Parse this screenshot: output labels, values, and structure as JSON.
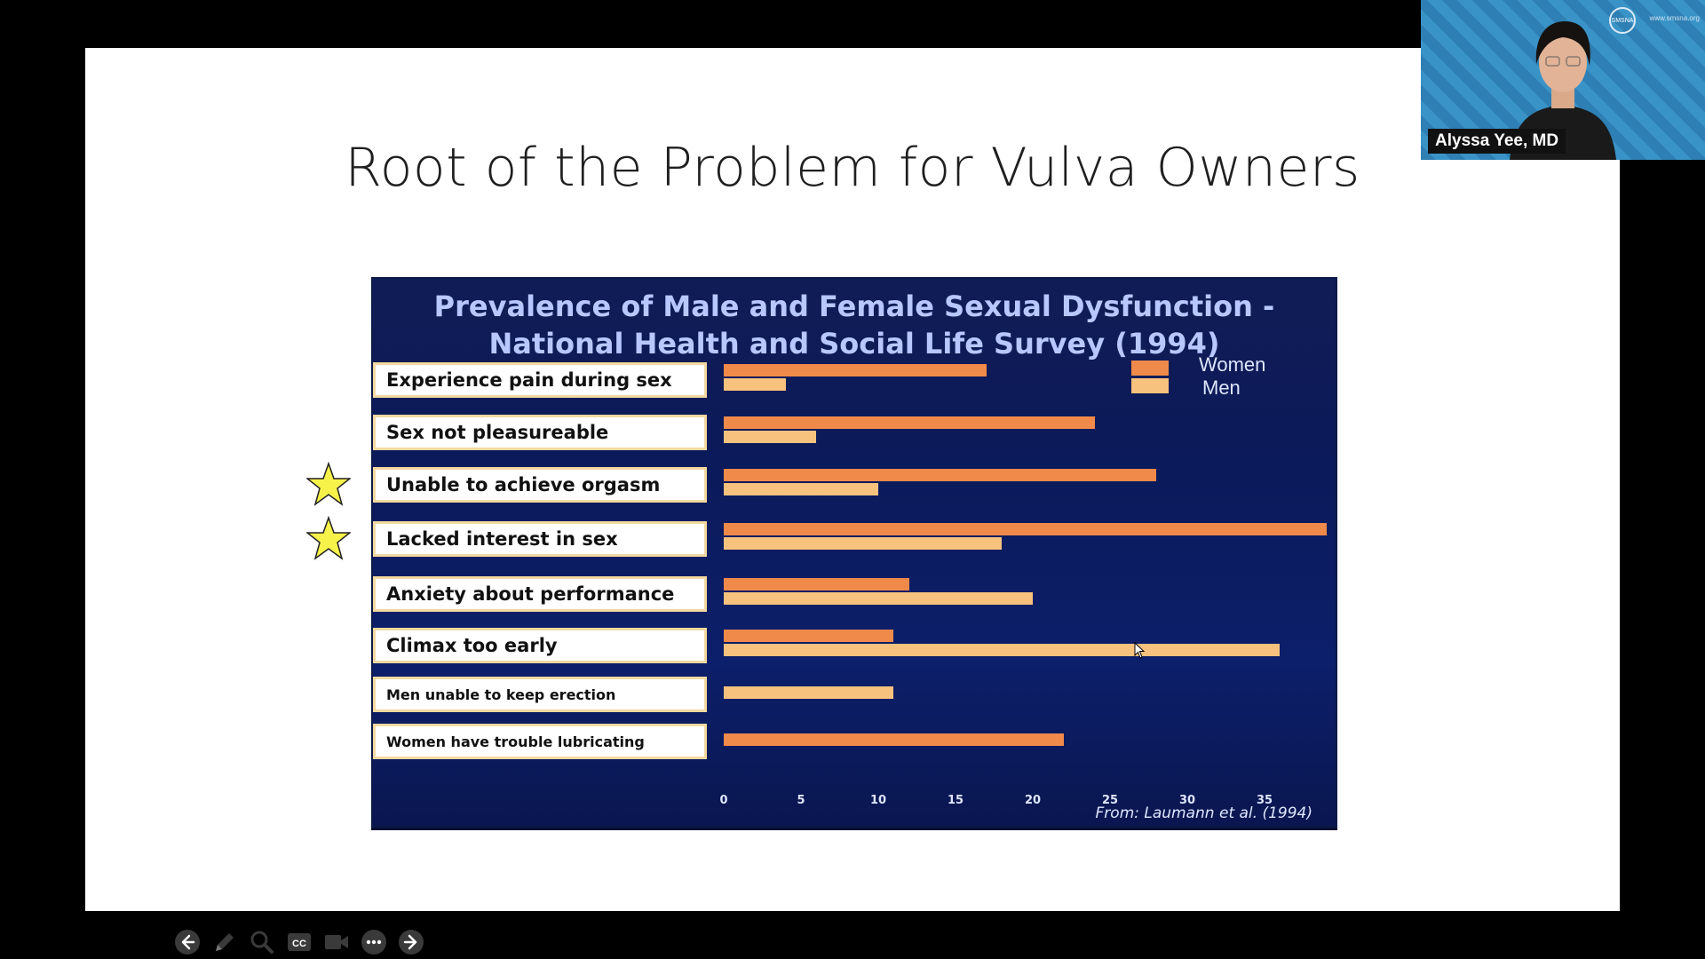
{
  "slide": {
    "title": "Root of the Problem for Vulva Owners"
  },
  "chart_data": {
    "type": "bar",
    "orientation": "horizontal",
    "title": "Prevalence of Male and Female Sexual Dysfunction - National Health and Social Life Survey (1994)",
    "title_line1": "Prevalence of Male and Female Sexual Dysfunction -",
    "title_line2": "National Health and Social Life Survey (1994)",
    "categories": [
      "Experience pain during sex",
      "Sex not pleasureable",
      "Unable to achieve orgasm",
      "Lacked interest in sex",
      "Anxiety about performance",
      "Climax too early",
      "Men unable to keep erection",
      "Women have trouble lubricating"
    ],
    "starred": [
      false,
      false,
      true,
      true,
      false,
      false,
      false,
      false
    ],
    "series": [
      {
        "name": "Women",
        "color": "#f08a4b",
        "values": [
          17,
          24,
          28,
          39,
          12,
          11,
          null,
          22
        ]
      },
      {
        "name": "Men",
        "color": "#f7c27e",
        "values": [
          4,
          6,
          10,
          18,
          20,
          36,
          11,
          null
        ]
      }
    ],
    "xlim": [
      0,
      39
    ],
    "xticks": [
      "0",
      "5",
      "10",
      "15",
      "20",
      "25",
      "30",
      "35"
    ],
    "legend_position": "top-right",
    "source": "From: Laumann et al. (1994)"
  },
  "toolbar": {
    "icons": [
      "arrow-left-icon",
      "pen-icon",
      "search-icon",
      "cc-icon",
      "video-camera-icon",
      "more-icon",
      "arrow-right-icon"
    ]
  },
  "video_tile": {
    "presenter_name": "Alyssa Yee, MD",
    "logo_text": "SMSNA",
    "url_text": "www.smsna.org"
  }
}
